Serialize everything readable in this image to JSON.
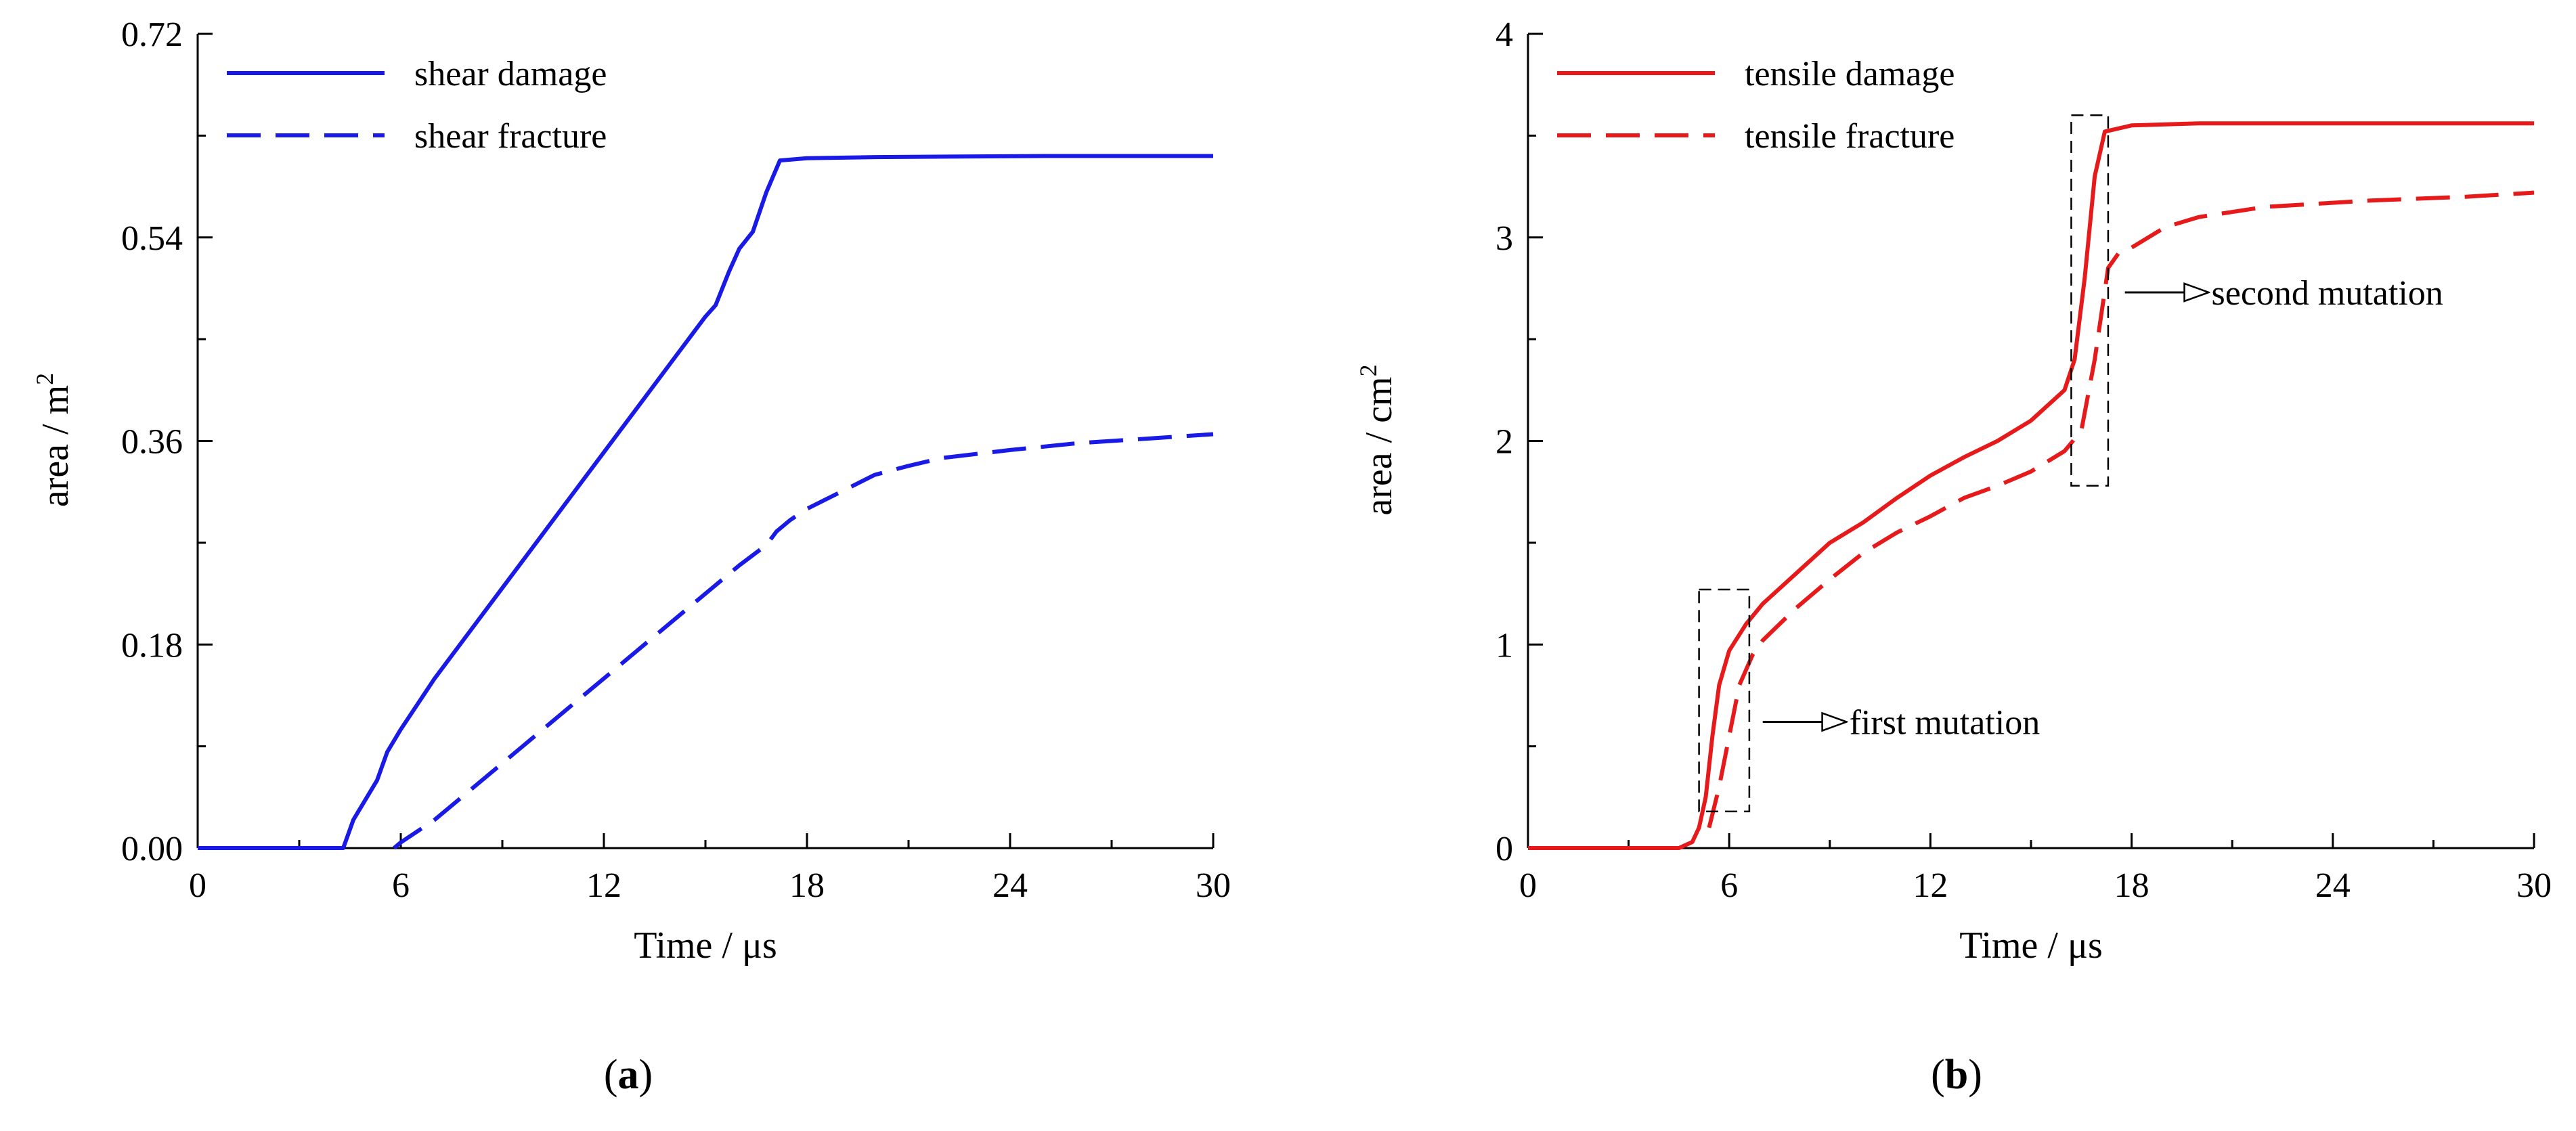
{
  "chart_data": [
    {
      "panel_label": "a",
      "type": "line",
      "title": "",
      "xlabel": "Time / μs",
      "ylabel_main": "area / m",
      "ylabel_sup": "2",
      "xlim": [
        0,
        30
      ],
      "ylim": [
        0,
        0.72
      ],
      "xticks": [
        0,
        6,
        12,
        18,
        24,
        30
      ],
      "xtick_labels": [
        "0",
        "6",
        "12",
        "18",
        "24",
        "30"
      ],
      "yticks": [
        0,
        0.18,
        0.36,
        0.54,
        0.72
      ],
      "ytick_labels": [
        "0.00",
        "0.18",
        "0.36",
        "0.54",
        "0.72"
      ],
      "grid": false,
      "legend_position": "top-left",
      "color": "#1a1ae6",
      "series": [
        {
          "name": "shear damage",
          "style": "solid",
          "points": [
            [
              0,
              0
            ],
            [
              4.3,
              0
            ],
            [
              4.6,
              0.025
            ],
            [
              5.0,
              0.045
            ],
            [
              5.3,
              0.06
            ],
            [
              5.6,
              0.085
            ],
            [
              6,
              0.105
            ],
            [
              7,
              0.15
            ],
            [
              8,
              0.19
            ],
            [
              9,
              0.23
            ],
            [
              10,
              0.27
            ],
            [
              11,
              0.31
            ],
            [
              12,
              0.35
            ],
            [
              13,
              0.39
            ],
            [
              14,
              0.43
            ],
            [
              15,
              0.47
            ],
            [
              15.3,
              0.48
            ],
            [
              15.7,
              0.51
            ],
            [
              16.0,
              0.53
            ],
            [
              16.4,
              0.545
            ],
            [
              16.8,
              0.58
            ],
            [
              17.2,
              0.608
            ],
            [
              18,
              0.61
            ],
            [
              20,
              0.611
            ],
            [
              25,
              0.612
            ],
            [
              30,
              0.612
            ]
          ]
        },
        {
          "name": "shear fracture",
          "style": "dashed",
          "points": [
            [
              5.8,
              0
            ],
            [
              6,
              0.005
            ],
            [
              7,
              0.025
            ],
            [
              8,
              0.05
            ],
            [
              9,
              0.075
            ],
            [
              10,
              0.1
            ],
            [
              11,
              0.125
            ],
            [
              12,
              0.15
            ],
            [
              13,
              0.175
            ],
            [
              14,
              0.2
            ],
            [
              15,
              0.225
            ],
            [
              16,
              0.25
            ],
            [
              16.8,
              0.268
            ],
            [
              17.1,
              0.28
            ],
            [
              17.5,
              0.29
            ],
            [
              18,
              0.3
            ],
            [
              19,
              0.315
            ],
            [
              20,
              0.33
            ],
            [
              21,
              0.338
            ],
            [
              22,
              0.345
            ],
            [
              24,
              0.352
            ],
            [
              26,
              0.358
            ],
            [
              28,
              0.362
            ],
            [
              30,
              0.366
            ]
          ]
        }
      ],
      "annotations": []
    },
    {
      "panel_label": "b",
      "type": "line",
      "title": "",
      "xlabel": "Time / μs",
      "ylabel_main": "area / cm",
      "ylabel_sup": "2",
      "xlim": [
        0,
        30
      ],
      "ylim": [
        0,
        4
      ],
      "xticks": [
        0,
        6,
        12,
        18,
        24,
        30
      ],
      "xtick_labels": [
        "0",
        "6",
        "12",
        "18",
        "24",
        "30"
      ],
      "yticks": [
        0,
        1,
        2,
        3,
        4
      ],
      "ytick_labels": [
        "0",
        "1",
        "2",
        "3",
        "4"
      ],
      "grid": false,
      "legend_position": "top-left",
      "color": "#e61a1a",
      "series": [
        {
          "name": "tensile damage",
          "style": "solid",
          "points": [
            [
              0,
              0
            ],
            [
              4.5,
              0
            ],
            [
              4.9,
              0.03
            ],
            [
              5.1,
              0.1
            ],
            [
              5.3,
              0.25
            ],
            [
              5.5,
              0.55
            ],
            [
              5.7,
              0.8
            ],
            [
              6,
              0.97
            ],
            [
              6.5,
              1.1
            ],
            [
              7,
              1.2
            ],
            [
              8,
              1.35
            ],
            [
              9,
              1.5
            ],
            [
              10,
              1.6
            ],
            [
              11,
              1.72
            ],
            [
              12,
              1.83
            ],
            [
              13,
              1.92
            ],
            [
              14,
              2.0
            ],
            [
              15,
              2.1
            ],
            [
              16,
              2.25
            ],
            [
              16.3,
              2.4
            ],
            [
              16.6,
              2.8
            ],
            [
              16.9,
              3.3
            ],
            [
              17.2,
              3.52
            ],
            [
              18,
              3.55
            ],
            [
              20,
              3.56
            ],
            [
              25,
              3.56
            ],
            [
              30,
              3.56
            ]
          ]
        },
        {
          "name": "tensile fracture",
          "style": "dashed",
          "points": [
            [
              5.4,
              0.1
            ],
            [
              5.7,
              0.3
            ],
            [
              6,
              0.55
            ],
            [
              6.3,
              0.8
            ],
            [
              6.7,
              0.95
            ],
            [
              7,
              1.02
            ],
            [
              8,
              1.18
            ],
            [
              9,
              1.32
            ],
            [
              10,
              1.45
            ],
            [
              11,
              1.55
            ],
            [
              12,
              1.63
            ],
            [
              13,
              1.72
            ],
            [
              14,
              1.78
            ],
            [
              15,
              1.85
            ],
            [
              16,
              1.95
            ],
            [
              16.5,
              2.05
            ],
            [
              16.9,
              2.4
            ],
            [
              17.3,
              2.85
            ],
            [
              17.6,
              2.92
            ],
            [
              18,
              2.95
            ],
            [
              19,
              3.05
            ],
            [
              20,
              3.1
            ],
            [
              22,
              3.15
            ],
            [
              25,
              3.18
            ],
            [
              28,
              3.2
            ],
            [
              30,
              3.22
            ]
          ]
        }
      ],
      "annotations": [
        {
          "name": "first mutation",
          "box_x": [
            5.1,
            6.6
          ],
          "box_y": [
            0.18,
            1.27
          ],
          "arrow_x": [
            7.0,
            9.5
          ],
          "arrow_y": 0.62
        },
        {
          "name": "second mutation",
          "box_x": [
            16.2,
            17.3
          ],
          "box_y": [
            1.78,
            3.6
          ],
          "arrow_x": [
            17.8,
            20.3
          ],
          "arrow_y": 2.73
        }
      ]
    }
  ],
  "panel_labels": [
    "a",
    "b"
  ]
}
